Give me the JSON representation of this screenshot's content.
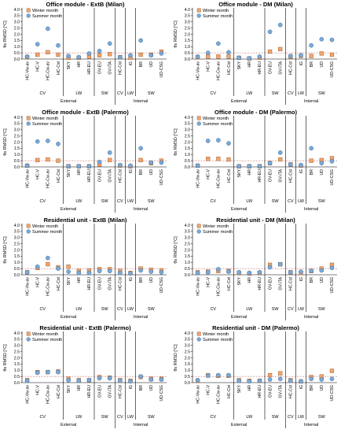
{
  "colors": {
    "winter": "#f4a46a",
    "winter_edge": "#8a4a1e",
    "summer": "#7aa9d9",
    "summer_edge": "#2b5a8a",
    "ref_line": "#c0504d"
  },
  "ylabel": "θs RMSD [°C]",
  "legend": {
    "winter": "Winter month",
    "summer": "Summer month"
  },
  "chart_data": [
    {
      "type": "scatter",
      "title": "Office module - ExtB (Milan)",
      "categories": [
        "HC-Vw-av",
        "HC-V",
        "HC-Cw-av",
        "HC-Cst",
        "SKY",
        "HR",
        "HR-EU",
        "GV-EU",
        "GV-ITA",
        "HC-Cst",
        "IG",
        "BR",
        "UD",
        "UD-CSG"
      ],
      "groups": [
        "CV",
        "LW",
        "SW",
        "CV",
        "LW",
        "SW"
      ],
      "sections": [
        "External",
        "Internal"
      ],
      "ylim": [
        0,
        4.0
      ],
      "yticks": [
        "0.0",
        "0.5",
        "1.0",
        "1.5",
        "2.0",
        "2.5",
        "3.0",
        "3.5",
        "4.0"
      ],
      "ref_line": 0.5,
      "grid": false,
      "legend_position": "top-left",
      "series": [
        {
          "name": "Winter month",
          "values": [
            0.15,
            0.35,
            0.55,
            0.35,
            0.1,
            0.1,
            0.2,
            0.3,
            0.4,
            0.15,
            0.1,
            0.35,
            0.35,
            0.6
          ]
        },
        {
          "name": "Summer month",
          "values": [
            0.2,
            1.2,
            2.45,
            1.1,
            0.25,
            0.15,
            0.45,
            0.65,
            1.25,
            0.15,
            0.3,
            1.5,
            0.3,
            0.45
          ]
        }
      ]
    },
    {
      "type": "scatter",
      "title": "Office module - DM (Milan)",
      "categories": [
        "HC-Vw-av",
        "HC-V",
        "HC-Cw-av",
        "HC-Cst",
        "SKY",
        "HR",
        "HR-EU",
        "GV-EU",
        "GV-ITA",
        "HC-Cst",
        "IG",
        "BR",
        "UD",
        "UD-CSG"
      ],
      "groups": [
        "CV",
        "LW",
        "SW",
        "CV",
        "LW",
        "SW"
      ],
      "sections": [
        "External",
        "Internal"
      ],
      "ylim": [
        0,
        4.0
      ],
      "yticks": [
        "0.0",
        "0.5",
        "1.0",
        "1.5",
        "2.0",
        "2.5",
        "3.0",
        "3.5",
        "4.0"
      ],
      "ref_line": 0.5,
      "grid": false,
      "legend_position": "top-left",
      "series": [
        {
          "name": "Winter month",
          "values": [
            0.15,
            0.2,
            0.2,
            0.2,
            0.1,
            0.05,
            0.1,
            0.6,
            0.8,
            0.2,
            0.25,
            0.25,
            0.45,
            0.35
          ]
        },
        {
          "name": "Summer month",
          "values": [
            0.2,
            0.5,
            1.25,
            0.55,
            0.1,
            0.05,
            0.2,
            2.2,
            2.75,
            0.25,
            0.3,
            1.1,
            1.6,
            1.55
          ]
        }
      ]
    },
    {
      "type": "scatter",
      "title": "Office module - ExtB (Palermo)",
      "categories": [
        "HC-Vw-av",
        "HC-V",
        "HC-Cw-av",
        "HC-Cst",
        "SKY",
        "HR",
        "HR-EU",
        "GV-EU",
        "GV-ITA",
        "HC-Cst",
        "IG",
        "BR",
        "UD",
        "UD-CSG"
      ],
      "groups": [
        "CV",
        "LW",
        "SW",
        "CV",
        "LW",
        "SW"
      ],
      "sections": [
        "External",
        "Internal"
      ],
      "ylim": [
        0,
        4.0
      ],
      "yticks": [
        "0.0",
        "0.5",
        "1.0",
        "1.5",
        "2.0",
        "2.5",
        "3.0",
        "3.5",
        "4.0"
      ],
      "ref_line": 0.5,
      "grid": false,
      "legend_position": "top-left",
      "series": [
        {
          "name": "Winter month",
          "values": [
            0.1,
            0.55,
            0.6,
            0.5,
            0.05,
            0.05,
            0.05,
            0.2,
            0.55,
            0.1,
            0.05,
            0.55,
            0.3,
            0.5
          ]
        },
        {
          "name": "Summer month",
          "values": [
            0.1,
            2.05,
            2.1,
            1.85,
            0.05,
            0.05,
            0.05,
            0.4,
            1.15,
            0.15,
            0.1,
            1.5,
            0.35,
            0.35
          ]
        }
      ]
    },
    {
      "type": "scatter",
      "title": "Office module - DM (Palermo)",
      "categories": [
        "HC-Vw-av",
        "HC-V",
        "HC-Cw-av",
        "HC-Cst",
        "SKY",
        "HR",
        "HR-EU",
        "GV-EU",
        "GV-ITA",
        "HC-Cst",
        "IG",
        "BR",
        "UD",
        "UD-CSG"
      ],
      "groups": [
        "CV",
        "LW",
        "SW",
        "CV",
        "LW",
        "SW"
      ],
      "sections": [
        "External",
        "Internal"
      ],
      "ylim": [
        0,
        4.0
      ],
      "yticks": [
        "0.0",
        "0.5",
        "1.0",
        "1.5",
        "2.0",
        "2.5",
        "3.0",
        "3.5",
        "4.0"
      ],
      "ref_line": 0.5,
      "grid": false,
      "legend_position": "top-left",
      "series": [
        {
          "name": "Winter month",
          "values": [
            0.1,
            0.65,
            0.65,
            0.6,
            0.05,
            0.05,
            0.05,
            0.3,
            0.6,
            0.2,
            0.1,
            0.5,
            0.55,
            0.7
          ]
        },
        {
          "name": "Summer month",
          "values": [
            0.1,
            2.1,
            2.15,
            1.9,
            0.05,
            0.05,
            0.05,
            0.3,
            1.15,
            0.2,
            0.15,
            1.5,
            0.3,
            0.45
          ]
        }
      ]
    },
    {
      "type": "scatter",
      "title": "Residential unit - ExtB (Milan)",
      "categories": [
        "HC-Vw-av",
        "HC-V",
        "HC-Cw-av",
        "HC-Cst",
        "SKY",
        "HR",
        "HR-EU",
        "GV-EU",
        "GV-ITA",
        "HC-Cst",
        "IG",
        "BR",
        "UD",
        "UD-CSG"
      ],
      "groups": [
        "CV",
        "LW",
        "SW",
        "CV",
        "LW",
        "SW"
      ],
      "sections": [
        "External",
        "Internal"
      ],
      "ylim": [
        0,
        4.0
      ],
      "yticks": [
        "0.0",
        "0.5",
        "1.0",
        "1.5",
        "2.0",
        "2.5",
        "3.0",
        "3.5",
        "4.0"
      ],
      "ref_line": 0.5,
      "grid": false,
      "legend_position": "top-left",
      "series": [
        {
          "name": "Winter month",
          "values": [
            0.2,
            0.55,
            0.85,
            0.6,
            0.65,
            0.3,
            0.35,
            0.45,
            0.45,
            0.3,
            0.15,
            0.5,
            0.4,
            0.35
          ]
        },
        {
          "name": "Summer month",
          "values": [
            0.2,
            0.65,
            1.35,
            0.5,
            0.25,
            0.15,
            0.15,
            0.3,
            0.3,
            0.15,
            0.1,
            0.35,
            0.25,
            0.2
          ]
        }
      ]
    },
    {
      "type": "scatter",
      "title": "Residential unit - DM (Milan)",
      "categories": [
        "HC-Vw-av",
        "HC-V",
        "HC-Cw-av",
        "HC-Cst",
        "SKY",
        "HR",
        "HR-EU",
        "GV-EU",
        "GV-ITA",
        "HC-Cst",
        "IG",
        "BR",
        "UD",
        "UD-CSG"
      ],
      "groups": [
        "CV",
        "LW",
        "SW",
        "CV",
        "LW",
        "SW"
      ],
      "sections": [
        "External",
        "Internal"
      ],
      "ylim": [
        0,
        4.0
      ],
      "yticks": [
        "0.0",
        "0.5",
        "1.0",
        "1.5",
        "2.0",
        "2.5",
        "3.0",
        "3.5",
        "4.0"
      ],
      "ref_line": 0.5,
      "grid": false,
      "legend_position": "top-left",
      "series": [
        {
          "name": "Winter month",
          "values": [
            0.2,
            0.25,
            0.3,
            0.3,
            0.15,
            0.1,
            0.15,
            0.8,
            0.85,
            0.2,
            0.15,
            0.3,
            0.5,
            0.8
          ]
        },
        {
          "name": "Summer month",
          "values": [
            0.15,
            0.2,
            0.45,
            0.25,
            0.2,
            0.15,
            0.2,
            0.6,
            0.85,
            0.2,
            0.25,
            0.3,
            0.35,
            0.55
          ]
        }
      ]
    },
    {
      "type": "scatter",
      "title": "Residential unit - ExtB (Palermo)",
      "categories": [
        "HC-Vw-av",
        "HC-V",
        "HC-Cw-av",
        "HC-Cst",
        "SKY",
        "HR",
        "HR-EU",
        "GV-EU",
        "GV-ITA",
        "HC-Cst",
        "IG",
        "BR",
        "UD",
        "UD-CSG"
      ],
      "groups": [
        "CV",
        "LW",
        "SW",
        "CV",
        "LW",
        "SW"
      ],
      "sections": [
        "External",
        "Internal"
      ],
      "ylim": [
        0,
        4.0
      ],
      "yticks": [
        "0.0",
        "0.5",
        "1.0",
        "1.5",
        "2.0",
        "2.5",
        "3.0",
        "3.5",
        "4.0"
      ],
      "ref_line": 0.5,
      "grid": false,
      "legend_position": "top-left",
      "series": [
        {
          "name": "Winter month",
          "values": [
            0.2,
            0.85,
            0.85,
            0.9,
            0.3,
            0.2,
            0.2,
            0.45,
            0.4,
            0.2,
            0.15,
            0.45,
            0.3,
            0.3
          ]
        },
        {
          "name": "Summer month",
          "values": [
            0.15,
            0.8,
            0.85,
            0.85,
            0.2,
            0.15,
            0.2,
            0.35,
            0.35,
            0.15,
            0.1,
            0.5,
            0.25,
            0.25
          ]
        }
      ]
    },
    {
      "type": "scatter",
      "title": "Residential unit - DM (Palermo)",
      "categories": [
        "HC-Vw-av",
        "HC-V",
        "HC-Cw-av",
        "HC-Cst",
        "SKY",
        "HR",
        "HR-EU",
        "GV-EU",
        "GV-ITA",
        "HC-Cst",
        "IG",
        "BR",
        "UD",
        "UD-CSG"
      ],
      "groups": [
        "CV",
        "LW",
        "SW",
        "CV",
        "LW",
        "SW"
      ],
      "sections": [
        "External",
        "Internal"
      ],
      "ylim": [
        0,
        4.0
      ],
      "yticks": [
        "0.0",
        "0.5",
        "1.0",
        "1.5",
        "2.0",
        "2.5",
        "3.0",
        "3.5",
        "4.0"
      ],
      "ref_line": 0.5,
      "grid": false,
      "legend_position": "top-left",
      "series": [
        {
          "name": "Winter month",
          "values": [
            0.15,
            0.6,
            0.55,
            0.55,
            0.2,
            0.15,
            0.15,
            0.6,
            0.75,
            0.2,
            0.1,
            0.45,
            0.5,
            0.95
          ]
        },
        {
          "name": "Summer month",
          "values": [
            0.2,
            0.55,
            0.6,
            0.6,
            0.15,
            0.1,
            0.15,
            0.25,
            0.3,
            0.15,
            0.1,
            0.3,
            0.25,
            0.3
          ]
        }
      ]
    }
  ]
}
